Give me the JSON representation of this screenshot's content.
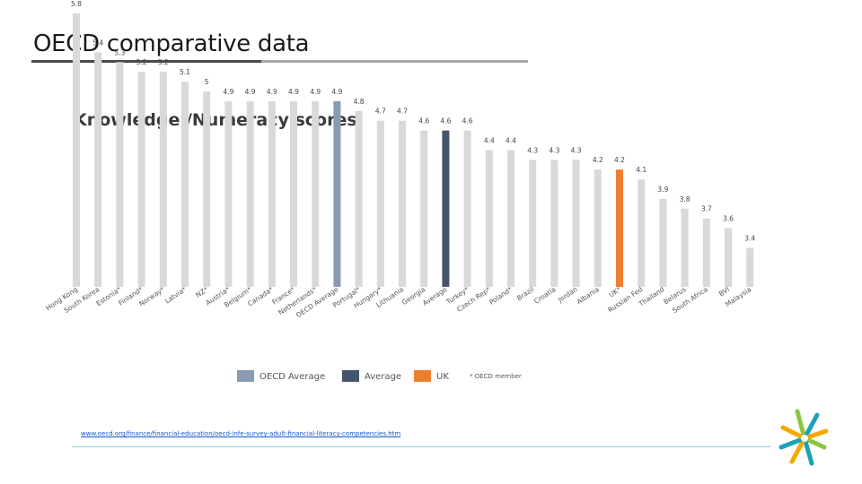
{
  "page": {
    "title": "OECD comparative data",
    "source_url": "www.oecd.org/finance/financial-education/oecd-infe-survey-adult-financial-literacy-competencies.htm",
    "footnote": "* OECD member"
  },
  "legend": [
    {
      "label": "OECD Average",
      "color": "#8a9bb0"
    },
    {
      "label": "Average",
      "color": "#44546a"
    },
    {
      "label": "UK",
      "color": "#ed7d31"
    }
  ],
  "colors": {
    "default_bar": "#d9d9d9",
    "oecd_average": "#8a9bb0",
    "average": "#44546a",
    "uk": "#ed7d31"
  },
  "chart_data": {
    "type": "bar",
    "title": "Knowledge /Numeracy scores",
    "categories": [
      "Hong Kong",
      "South Korea",
      "Estonia*",
      "Finland*",
      "Norway*",
      "Latvia*",
      "NZ*",
      "Austria*",
      "Belgium*",
      "Canada*",
      "France*",
      "Netherlands*",
      "OECD Average",
      "Portugal*",
      "Hungary*",
      "Lithuania",
      "Georgia",
      "Average",
      "Turkey*",
      "Czech Rep*",
      "Poland*",
      "Brazil",
      "Croatia",
      "Jordan",
      "Albania",
      "UK*",
      "Russian Fed",
      "Thailand",
      "Belarus",
      "South Africa",
      "BVI",
      "Malaysia"
    ],
    "values": [
      5.8,
      5.4,
      5.3,
      5.2,
      5.2,
      5.1,
      5,
      4.9,
      4.9,
      4.9,
      4.9,
      4.9,
      4.9,
      4.8,
      4.7,
      4.7,
      4.6,
      4.6,
      4.6,
      4.4,
      4.4,
      4.3,
      4.3,
      4.3,
      4.2,
      4.2,
      4.1,
      3.9,
      3.8,
      3.7,
      3.6,
      3.4
    ],
    "value_labels": [
      "5.8",
      "5.4",
      "5.3",
      "5.2",
      "5.2",
      "5.1",
      "5",
      "4.9",
      "4.9",
      "4.9",
      "4.9",
      "4.9",
      "4.9",
      "4.8",
      "4.7",
      "4.7",
      "4.6",
      "4.6",
      "4.6",
      "4.4",
      "4.4",
      "4.3",
      "4.3",
      "4.3",
      "4.2",
      "4.2",
      "4.1",
      "3.9",
      "3.8",
      "3.7",
      "3.6",
      "3.4"
    ],
    "highlight": {
      "OECD Average": "oecd_average",
      "Average": "average",
      "UK*": "uk"
    },
    "grid": false,
    "legend_position": "bottom"
  }
}
